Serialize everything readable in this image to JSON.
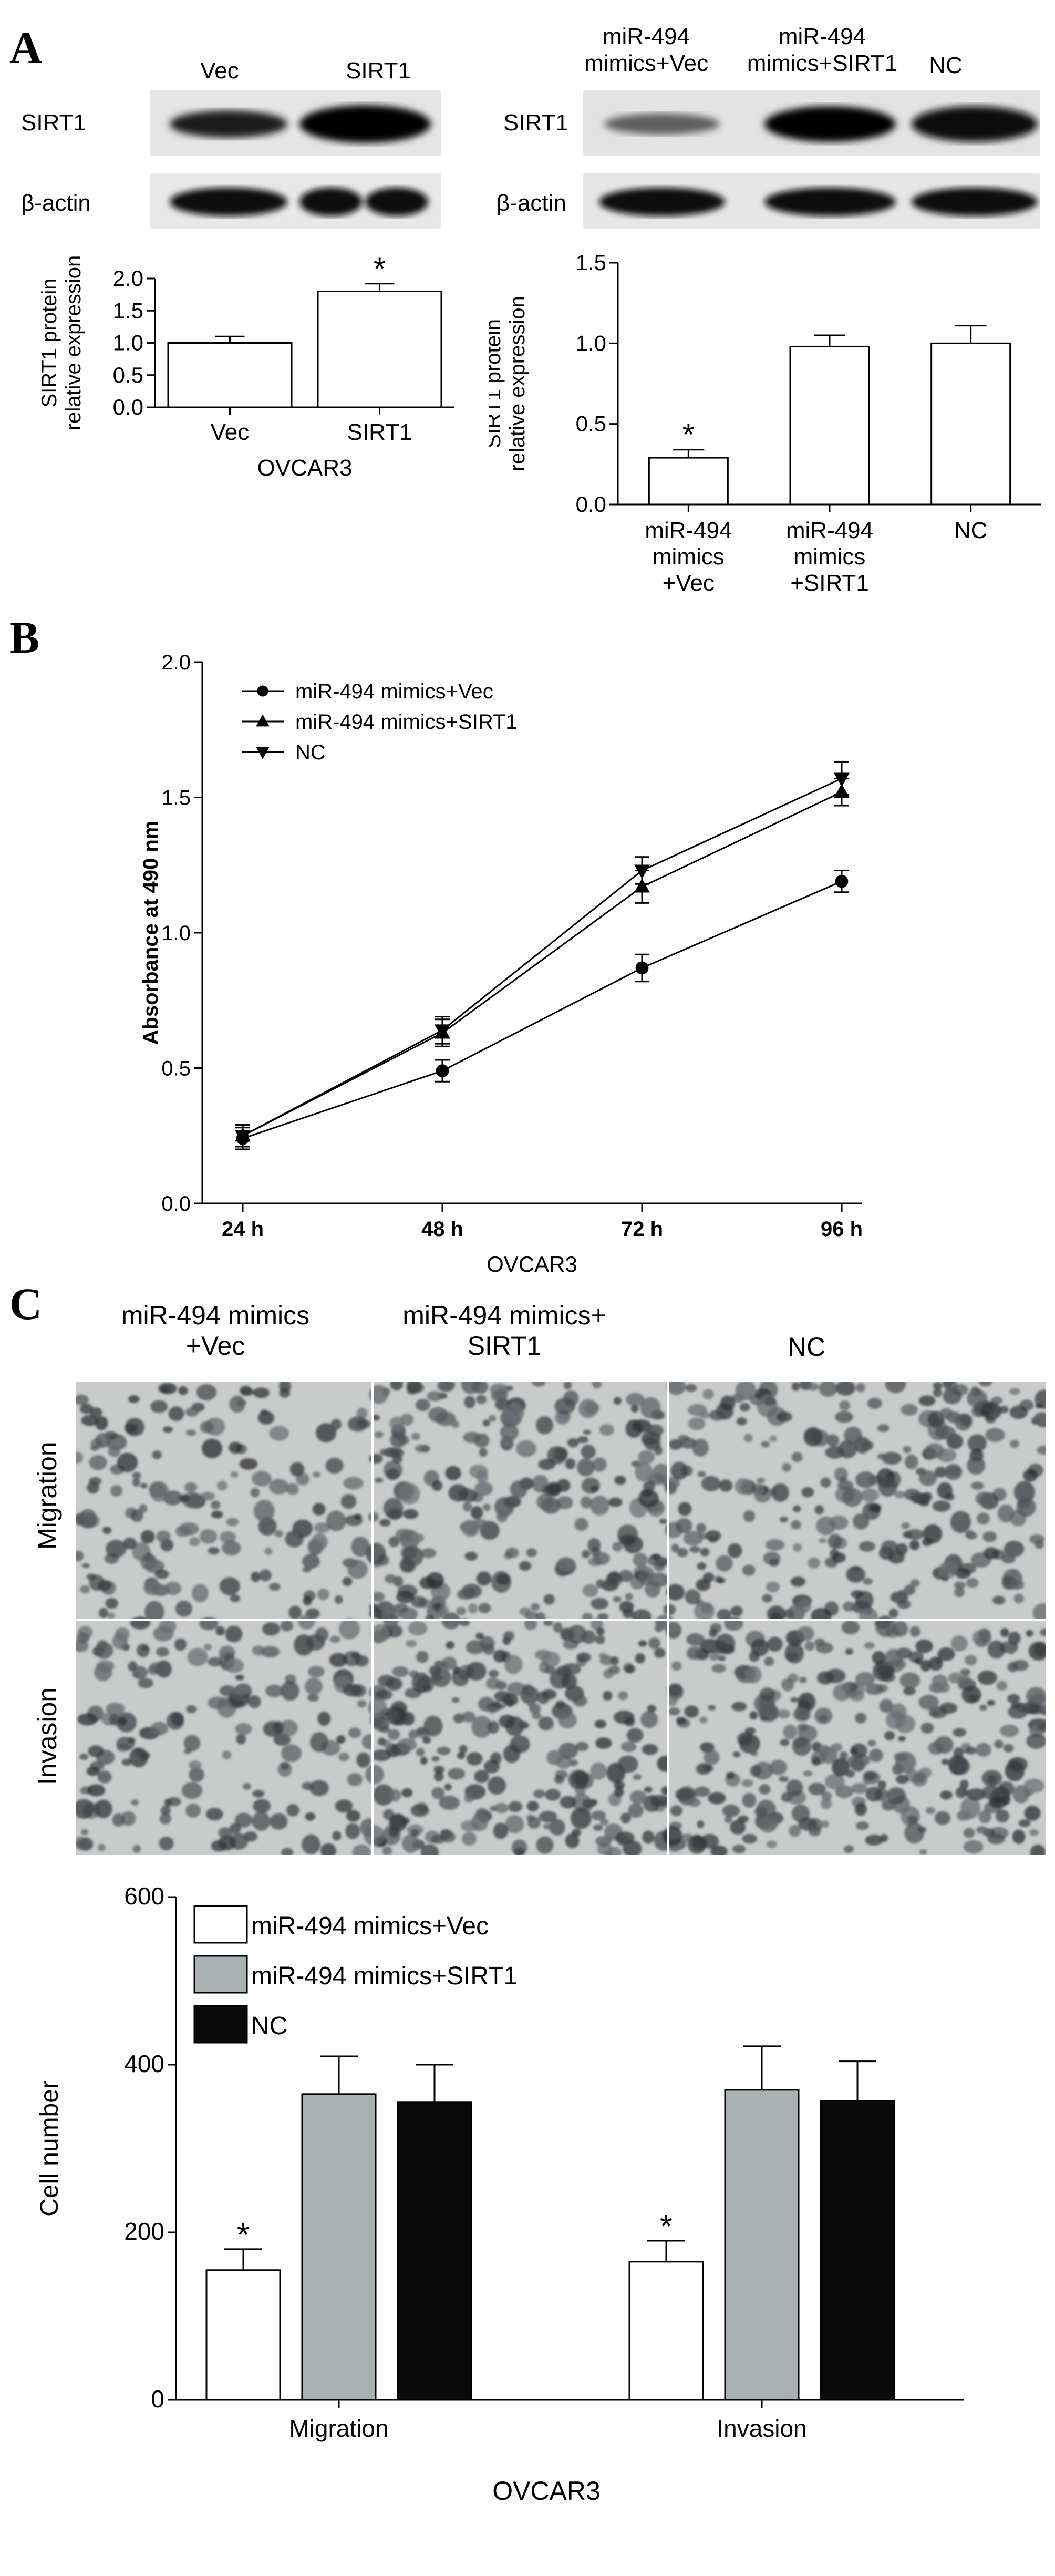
{
  "panels": {
    "a": "A",
    "b": "B",
    "c": "C"
  },
  "blot_left": {
    "lanes": [
      "Vec",
      "SIRT1"
    ],
    "rows": [
      "SIRT1",
      "β-actin"
    ]
  },
  "blot_right": {
    "lanes": [
      "miR-494\nmimics+Vec",
      "miR-494\nmimics+SIRT1",
      "NC"
    ],
    "rows": [
      "SIRT1",
      "β-actin"
    ]
  },
  "micro": {
    "cols": [
      "miR-494 mimics\n+Vec",
      "miR-494 mimics+\nSIRT1",
      "NC"
    ],
    "rows": [
      "Migration",
      "Invasion"
    ]
  },
  "colors": {
    "white_bar": "#ffffff",
    "gray_bar": "#a8b2b3",
    "black_bar": "#0a0a0a"
  },
  "chart_data": [
    {
      "type": "bar",
      "categories": [
        "Vec",
        "SIRT1"
      ],
      "values": [
        1.0,
        1.8
      ],
      "errors": [
        0.1,
        0.12
      ],
      "annotations": [
        "",
        "*"
      ],
      "ylabel": "SIRT1 protein\nrelative expression",
      "xlabel": "OVCAR3",
      "ylim": [
        0,
        2.0
      ],
      "yticks": [
        "0.0",
        "0.5",
        "1.0",
        "1.5",
        "2.0"
      ]
    },
    {
      "type": "bar",
      "categories": [
        "miR-494\nmimics\n+Vec",
        "miR-494\nmimics\n+SIRT1",
        "NC"
      ],
      "values": [
        0.29,
        0.98,
        1.0
      ],
      "errors": [
        0.05,
        0.07,
        0.11
      ],
      "annotations": [
        "*",
        "",
        ""
      ],
      "ylabel": "SIRT1 protein\nrelative expression",
      "xlabel": "",
      "ylim": [
        0,
        1.5
      ],
      "yticks": [
        "0.0",
        "0.5",
        "1.0",
        "1.5"
      ]
    },
    {
      "type": "line",
      "x": [
        "24 h",
        "48 h",
        "72 h",
        "96 h"
      ],
      "series": [
        {
          "name": "miR-494 mimics+Vec",
          "marker": "circle",
          "values": [
            0.24,
            0.49,
            0.87,
            1.19
          ],
          "errors": [
            0.04,
            0.04,
            0.05,
            0.04
          ]
        },
        {
          "name": "miR-494 mimics+SIRT1",
          "marker": "triangle-up",
          "values": [
            0.25,
            0.63,
            1.17,
            1.52
          ],
          "errors": [
            0.04,
            0.05,
            0.06,
            0.05
          ]
        },
        {
          "name": "NC",
          "marker": "triangle-down",
          "values": [
            0.25,
            0.64,
            1.23,
            1.57
          ],
          "errors": [
            0.04,
            0.05,
            0.05,
            0.06
          ]
        }
      ],
      "ylabel": "Absorbance at 490 nm",
      "xlabel": "OVCAR3",
      "ylim": [
        0,
        2.0
      ],
      "yticks": [
        "0.0",
        "0.5",
        "1.0",
        "1.5",
        "2.0"
      ],
      "legend": "top-left"
    },
    {
      "type": "bar",
      "categories": [
        "Migration",
        "Invasion"
      ],
      "series": [
        {
          "name": "miR-494 mimics+Vec",
          "values": [
            155,
            165
          ],
          "errors": [
            25,
            25
          ]
        },
        {
          "name": "miR-494 mimics+SIRT1",
          "values": [
            365,
            370
          ],
          "errors": [
            45,
            52
          ]
        },
        {
          "name": "NC",
          "values": [
            355,
            357
          ],
          "errors": [
            45,
            47
          ]
        }
      ],
      "annotations": [
        [
          "*",
          "",
          ""
        ],
        [
          "*",
          "",
          ""
        ]
      ],
      "ylabel": "Cell number",
      "xlabel": "OVCAR3",
      "ylim": [
        0,
        600
      ],
      "yticks": [
        "0",
        "200",
        "400",
        "600"
      ],
      "legend": "top-left"
    }
  ]
}
